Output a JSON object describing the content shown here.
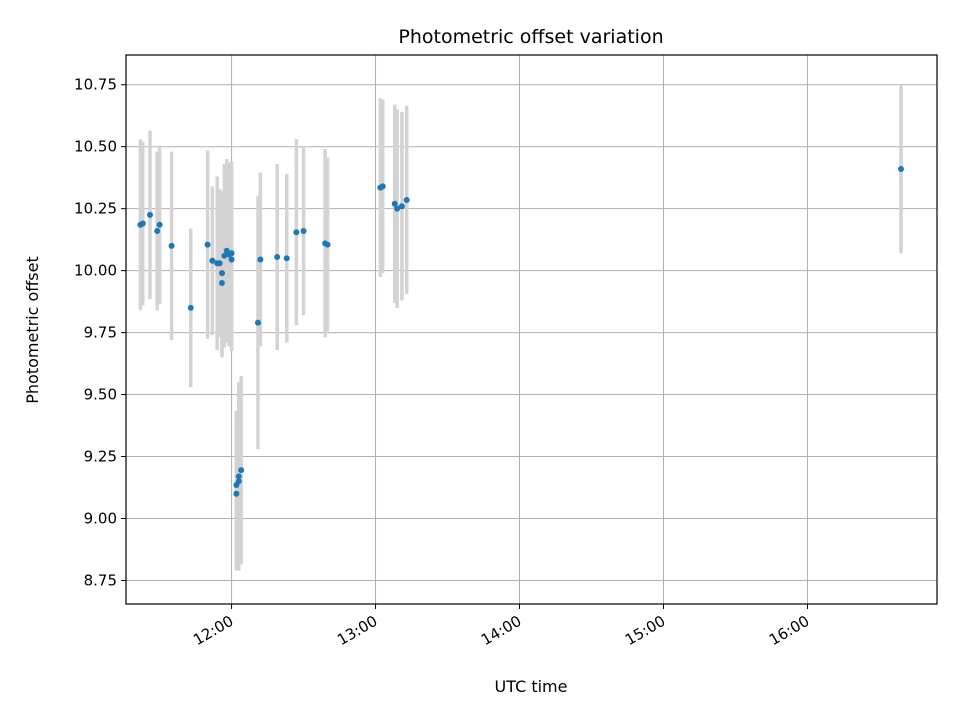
{
  "chart_data": {
    "type": "scatter",
    "title": "Photometric offset variation",
    "xlabel": "UTC time",
    "ylabel": "Photometric offset",
    "x_unit": "UTC time (HH:MM)",
    "xlim": [
      "11:16",
      "16:54"
    ],
    "ylim": [
      8.655,
      10.87
    ],
    "x_ticks": [
      "12:00",
      "13:00",
      "14:00",
      "15:00",
      "16:00"
    ],
    "y_ticks": [
      "8.75",
      "9.00",
      "9.25",
      "9.50",
      "9.75",
      "10.00",
      "10.25",
      "10.50",
      "10.75"
    ],
    "grid": true,
    "legend": "none",
    "colors": {
      "point": "#1f77b4",
      "errorbar": "#d3d3d3",
      "grid": "#b0b0b0"
    },
    "points": [
      {
        "x": "11:22",
        "y": 10.185,
        "yerr": 0.345
      },
      {
        "x": "11:23",
        "y": 10.19,
        "yerr": 0.33
      },
      {
        "x": "11:26",
        "y": 10.225,
        "yerr": 0.34
      },
      {
        "x": "11:29",
        "y": 10.16,
        "yerr": 0.32
      },
      {
        "x": "11:30",
        "y": 10.185,
        "yerr": 0.32
      },
      {
        "x": "11:35",
        "y": 10.1,
        "yerr": 0.38
      },
      {
        "x": "11:43",
        "y": 9.85,
        "yerr": 0.32
      },
      {
        "x": "11:50",
        "y": 10.105,
        "yerr": 0.38
      },
      {
        "x": "11:52",
        "y": 10.04,
        "yerr": 0.3
      },
      {
        "x": "11:54",
        "y": 10.03,
        "yerr": 0.35
      },
      {
        "x": "11:55",
        "y": 10.03,
        "yerr": 0.3
      },
      {
        "x": "11:56",
        "y": 9.99,
        "yerr": 0.33
      },
      {
        "x": "11:56",
        "y": 9.95,
        "yerr": 0.3
      },
      {
        "x": "11:57",
        "y": 10.06,
        "yerr": 0.37
      },
      {
        "x": "11:58",
        "y": 10.08,
        "yerr": 0.37
      },
      {
        "x": "11:59",
        "y": 10.065,
        "yerr": 0.37
      },
      {
        "x": "12:00",
        "y": 10.07,
        "yerr": 0.37
      },
      {
        "x": "12:00",
        "y": 10.045,
        "yerr": 0.37
      },
      {
        "x": "12:02",
        "y": 9.1,
        "yerr": 0.31
      },
      {
        "x": "12:02",
        "y": 9.135,
        "yerr": 0.3
      },
      {
        "x": "12:03",
        "y": 9.15,
        "yerr": 0.36
      },
      {
        "x": "12:03",
        "y": 9.17,
        "yerr": 0.38
      },
      {
        "x": "12:04",
        "y": 9.195,
        "yerr": 0.38
      },
      {
        "x": "12:11",
        "y": 9.79,
        "yerr": 0.51
      },
      {
        "x": "12:12",
        "y": 10.045,
        "yerr": 0.35
      },
      {
        "x": "12:19",
        "y": 10.055,
        "yerr": 0.375
      },
      {
        "x": "12:23",
        "y": 10.05,
        "yerr": 0.34
      },
      {
        "x": "12:27",
        "y": 10.155,
        "yerr": 0.375
      },
      {
        "x": "12:30",
        "y": 10.16,
        "yerr": 0.34
      },
      {
        "x": "12:39",
        "y": 10.11,
        "yerr": 0.38
      },
      {
        "x": "12:40",
        "y": 10.105,
        "yerr": 0.35
      },
      {
        "x": "13:02",
        "y": 10.335,
        "yerr": 0.36
      },
      {
        "x": "13:03",
        "y": 10.34,
        "yerr": 0.35
      },
      {
        "x": "13:08",
        "y": 10.27,
        "yerr": 0.4
      },
      {
        "x": "13:09",
        "y": 10.25,
        "yerr": 0.4
      },
      {
        "x": "13:11",
        "y": 10.26,
        "yerr": 0.38
      },
      {
        "x": "13:13",
        "y": 10.285,
        "yerr": 0.38
      },
      {
        "x": "16:39",
        "y": 10.41,
        "yerr": 0.34
      }
    ]
  }
}
